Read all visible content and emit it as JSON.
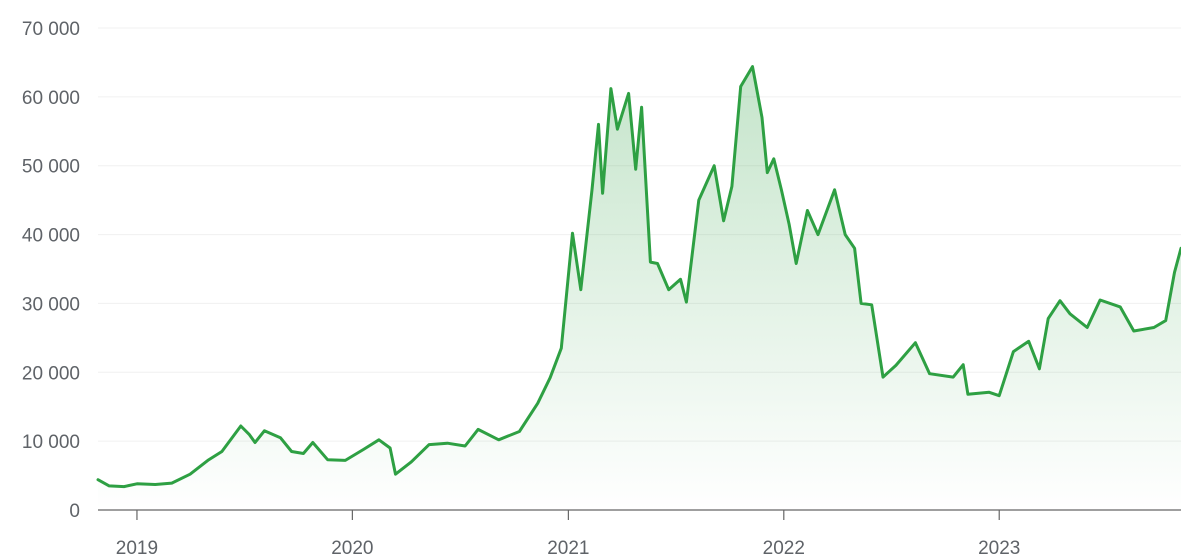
{
  "chart_data": {
    "type": "area",
    "title": "",
    "xlabel": "",
    "ylabel": "",
    "grid": true,
    "ylim": [
      0,
      70000
    ],
    "xlim": [
      "2018-10-27",
      "2023-11-05"
    ],
    "y_ticks": [
      0,
      10000,
      20000,
      30000,
      40000,
      50000,
      60000,
      70000
    ],
    "y_tick_labels": [
      "0",
      "10 000",
      "20 000",
      "30 000",
      "40 000",
      "50 000",
      "60 000",
      "70 000"
    ],
    "x_ticks": [
      "2019-01-01",
      "2020-01-01",
      "2021-01-01",
      "2022-01-01",
      "2023-01-01"
    ],
    "x_tick_labels": [
      "2019",
      "2020",
      "2021",
      "2022",
      "2023"
    ],
    "colors": {
      "line": "#2ea043",
      "fill": "#2ea043"
    },
    "series": [
      {
        "values": [
          [
            "2018-10-27",
            4400
          ],
          [
            "2018-11-15",
            3500
          ],
          [
            "2018-12-10",
            3400
          ],
          [
            "2019-01-01",
            3800
          ],
          [
            "2019-02-01",
            3700
          ],
          [
            "2019-03-01",
            3900
          ],
          [
            "2019-04-01",
            5200
          ],
          [
            "2019-05-01",
            7200
          ],
          [
            "2019-05-25",
            8500
          ],
          [
            "2019-06-26",
            12200
          ],
          [
            "2019-07-10",
            11000
          ],
          [
            "2019-07-20",
            9800
          ],
          [
            "2019-08-05",
            11500
          ],
          [
            "2019-09-01",
            10500
          ],
          [
            "2019-09-20",
            8500
          ],
          [
            "2019-10-10",
            8200
          ],
          [
            "2019-10-26",
            9800
          ],
          [
            "2019-11-20",
            7300
          ],
          [
            "2019-12-20",
            7200
          ],
          [
            "2020-01-20",
            8800
          ],
          [
            "2020-02-15",
            10200
          ],
          [
            "2020-03-05",
            9000
          ],
          [
            "2020-03-14",
            5200
          ],
          [
            "2020-04-10",
            7000
          ],
          [
            "2020-05-10",
            9500
          ],
          [
            "2020-06-10",
            9700
          ],
          [
            "2020-07-10",
            9300
          ],
          [
            "2020-08-01",
            11700
          ],
          [
            "2020-09-05",
            10200
          ],
          [
            "2020-10-10",
            11400
          ],
          [
            "2020-11-10",
            15500
          ],
          [
            "2020-12-01",
            19200
          ],
          [
            "2020-12-20",
            23500
          ],
          [
            "2021-01-08",
            40200
          ],
          [
            "2021-01-22",
            32000
          ],
          [
            "2021-02-10",
            46500
          ],
          [
            "2021-02-21",
            56000
          ],
          [
            "2021-02-28",
            46000
          ],
          [
            "2021-03-14",
            61200
          ],
          [
            "2021-03-25",
            55300
          ],
          [
            "2021-04-13",
            60500
          ],
          [
            "2021-04-25",
            49500
          ],
          [
            "2021-05-05",
            58500
          ],
          [
            "2021-05-20",
            36000
          ],
          [
            "2021-06-01",
            35800
          ],
          [
            "2021-06-20",
            32000
          ],
          [
            "2021-07-10",
            33500
          ],
          [
            "2021-07-20",
            30200
          ],
          [
            "2021-08-10",
            45000
          ],
          [
            "2021-09-05",
            50000
          ],
          [
            "2021-09-21",
            42000
          ],
          [
            "2021-10-05",
            47000
          ],
          [
            "2021-10-20",
            61500
          ],
          [
            "2021-11-09",
            64400
          ],
          [
            "2021-11-25",
            57000
          ],
          [
            "2021-12-04",
            49000
          ],
          [
            "2021-12-15",
            51000
          ],
          [
            "2021-12-28",
            46500
          ],
          [
            "2022-01-10",
            41500
          ],
          [
            "2022-01-22",
            35800
          ],
          [
            "2022-02-10",
            43500
          ],
          [
            "2022-02-28",
            40000
          ],
          [
            "2022-03-28",
            46500
          ],
          [
            "2022-04-15",
            40000
          ],
          [
            "2022-05-01",
            38000
          ],
          [
            "2022-05-12",
            30000
          ],
          [
            "2022-05-30",
            29800
          ],
          [
            "2022-06-18",
            19300
          ],
          [
            "2022-07-10",
            21000
          ],
          [
            "2022-08-12",
            24300
          ],
          [
            "2022-09-05",
            19800
          ],
          [
            "2022-10-15",
            19300
          ],
          [
            "2022-11-01",
            21100
          ],
          [
            "2022-11-09",
            16800
          ],
          [
            "2022-12-15",
            17100
          ],
          [
            "2023-01-01",
            16600
          ],
          [
            "2023-01-25",
            23000
          ],
          [
            "2023-02-20",
            24500
          ],
          [
            "2023-03-10",
            20500
          ],
          [
            "2023-03-25",
            27800
          ],
          [
            "2023-04-14",
            30400
          ],
          [
            "2023-05-01",
            28500
          ],
          [
            "2023-05-30",
            26500
          ],
          [
            "2023-06-21",
            30500
          ],
          [
            "2023-07-25",
            29500
          ],
          [
            "2023-08-17",
            26000
          ],
          [
            "2023-09-20",
            26500
          ],
          [
            "2023-10-10",
            27500
          ],
          [
            "2023-10-25",
            34500
          ],
          [
            "2023-11-05",
            38000
          ]
        ]
      }
    ]
  }
}
